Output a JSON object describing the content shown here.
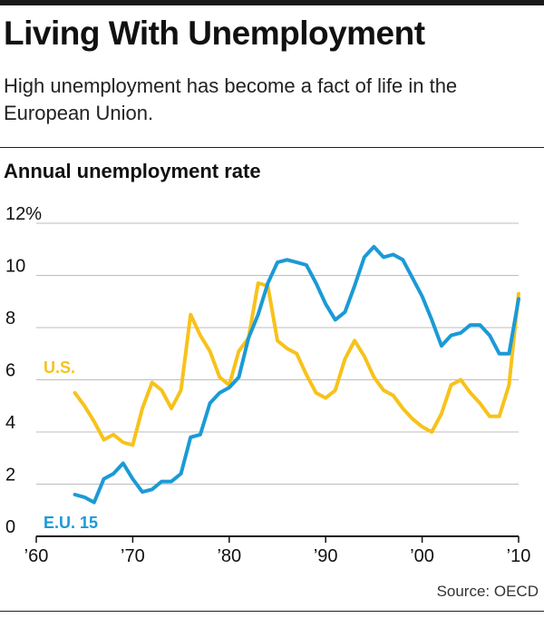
{
  "header": {
    "title": "Living With Unemployment",
    "subtitle": "High unemployment has become a fact of life in the European Union."
  },
  "source": "Source: OECD",
  "colors": {
    "us": "#f7c21b",
    "eu": "#1b9ad6",
    "grid": "#bdbdbd",
    "axis": "#111111"
  },
  "chart_data": {
    "type": "line",
    "title": "Annual unemployment rate",
    "ylim": [
      0,
      12
    ],
    "xlim": [
      1960,
      2010
    ],
    "yticks": [
      0,
      2,
      4,
      6,
      8,
      10,
      12
    ],
    "ytick_labels": [
      "0",
      "2",
      "4",
      "6",
      "8",
      "10",
      "12%"
    ],
    "xticks": [
      1960,
      1970,
      1980,
      1990,
      2000,
      2010
    ],
    "xtick_labels": [
      "’60",
      "’70",
      "’80",
      "’90",
      "’00",
      "’10"
    ],
    "grid": true,
    "series": [
      {
        "name": "U.S.",
        "color": "#f7c21b",
        "x": [
          1964,
          1965,
          1966,
          1967,
          1968,
          1969,
          1970,
          1971,
          1972,
          1973,
          1974,
          1975,
          1976,
          1977,
          1978,
          1979,
          1980,
          1981,
          1982,
          1983,
          1984,
          1985,
          1986,
          1987,
          1988,
          1989,
          1990,
          1991,
          1992,
          1993,
          1994,
          1995,
          1996,
          1997,
          1998,
          1999,
          2000,
          2001,
          2002,
          2003,
          2004,
          2005,
          2006,
          2007,
          2008,
          2009,
          2010
        ],
        "values": [
          5.5,
          5.0,
          4.4,
          3.7,
          3.9,
          3.6,
          3.5,
          4.9,
          5.9,
          5.6,
          4.9,
          5.6,
          8.5,
          7.7,
          7.1,
          6.1,
          5.8,
          7.1,
          7.6,
          9.7,
          9.6,
          7.5,
          7.2,
          7.0,
          6.2,
          5.5,
          5.3,
          5.6,
          6.8,
          7.5,
          6.9,
          6.1,
          5.6,
          5.4,
          4.9,
          4.5,
          4.2,
          4.0,
          4.7,
          5.8,
          6.0,
          5.5,
          5.1,
          4.6,
          4.6,
          5.8,
          9.3
        ]
      },
      {
        "name": "E.U. 15",
        "color": "#1b9ad6",
        "x": [
          1964,
          1965,
          1966,
          1967,
          1968,
          1969,
          1970,
          1971,
          1972,
          1973,
          1974,
          1975,
          1976,
          1977,
          1978,
          1979,
          1980,
          1981,
          1982,
          1983,
          1984,
          1985,
          1986,
          1987,
          1988,
          1989,
          1990,
          1991,
          1992,
          1993,
          1994,
          1995,
          1996,
          1997,
          1998,
          1999,
          2000,
          2001,
          2002,
          2003,
          2004,
          2005,
          2006,
          2007,
          2008,
          2009,
          2010
        ],
        "values": [
          1.6,
          1.5,
          1.3,
          2.2,
          2.4,
          2.8,
          2.2,
          1.7,
          1.8,
          2.1,
          2.1,
          2.4,
          3.8,
          3.9,
          5.1,
          5.5,
          5.7,
          6.1,
          7.6,
          8.5,
          9.7,
          10.5,
          10.6,
          10.5,
          10.4,
          9.7,
          8.9,
          8.3,
          8.6,
          9.6,
          10.7,
          11.1,
          10.7,
          10.8,
          10.6,
          9.9,
          9.2,
          8.3,
          7.3,
          7.7,
          7.8,
          8.1,
          8.1,
          7.7,
          7.0,
          7.0,
          9.1
        ]
      }
    ]
  }
}
